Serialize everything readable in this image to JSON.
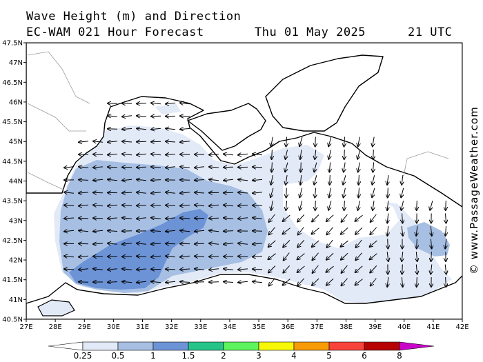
{
  "header": {
    "line1": "Wave Height (m) and Direction",
    "model": "EC-WAM 021 Hour Forecast",
    "date": "Thu 01 May 2025",
    "time": "21 UTC"
  },
  "credit": "© www.PassageWeather.com",
  "axes": {
    "lon_labels": [
      "27E",
      "28E",
      "29E",
      "30E",
      "31E",
      "32E",
      "33E",
      "34E",
      "35E",
      "36E",
      "37E",
      "38E",
      "39E",
      "40E",
      "41E",
      "42E"
    ],
    "lat_labels": [
      "40.5N",
      "41N",
      "41.5N",
      "42N",
      "42.5N",
      "43N",
      "43.5N",
      "44N",
      "44.5N",
      "45N",
      "45.5N",
      "46N",
      "46.5N",
      "47N",
      "47.5N"
    ],
    "lon_range": [
      27,
      42
    ],
    "lat_range": [
      40.5,
      47.5
    ]
  },
  "legend": {
    "ticks": [
      "0.25",
      "0.5",
      "1",
      "1.5",
      "2",
      "3",
      "4",
      "5",
      "6",
      "8"
    ],
    "colors": [
      "#ffffff",
      "#e2e9f7",
      "#a6bfe3",
      "#6c93d6",
      "#27c489",
      "#5ef45e",
      "#f7f707",
      "#f79b07",
      "#f7433a",
      "#b70303",
      "#c904c9"
    ]
  },
  "colors": {
    "land": "#ffffff",
    "coast": "#000000",
    "border": "#9a9a9a"
  }
}
